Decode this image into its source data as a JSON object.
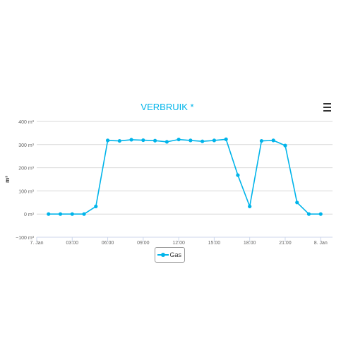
{
  "chart_data": {
    "type": "line",
    "title": "VERBRUIK *",
    "ylabel": "m³",
    "xlabel": "",
    "ylim": [
      -100,
      400
    ],
    "y_ticks": [
      {
        "value": 400,
        "label": "400 m³"
      },
      {
        "value": 300,
        "label": "300 m³"
      },
      {
        "value": 200,
        "label": "200 m³"
      },
      {
        "value": 100,
        "label": "100 m³"
      },
      {
        "value": 0,
        "label": "0 m³"
      },
      {
        "value": -100,
        "label": "−100 m³"
      }
    ],
    "xlim": [
      0,
      25
    ],
    "x_ticks": [
      {
        "value": 0,
        "label": "7. Jan"
      },
      {
        "value": 3,
        "label": "03:00"
      },
      {
        "value": 6,
        "label": "06:00"
      },
      {
        "value": 9,
        "label": "09:00"
      },
      {
        "value": 12,
        "label": "12:00"
      },
      {
        "value": 15,
        "label": "15:00"
      },
      {
        "value": 18,
        "label": "18:00"
      },
      {
        "value": 21,
        "label": "21:00"
      },
      {
        "value": 24,
        "label": "8. Jan"
      }
    ],
    "grid": true,
    "legend": "bottom-center",
    "series": [
      {
        "name": "Gas",
        "color": "#00b4ea",
        "x": [
          1,
          2,
          3,
          4,
          5,
          6,
          7,
          8,
          9,
          10,
          11,
          12,
          13,
          14,
          15,
          16,
          17,
          18,
          19,
          20,
          21,
          22,
          23,
          24
        ],
        "values": [
          0,
          0,
          0,
          0,
          33,
          318,
          316,
          321,
          319,
          317,
          312,
          322,
          318,
          314,
          318,
          323,
          168,
          33,
          316,
          318,
          296,
          50,
          0,
          0
        ]
      }
    ]
  },
  "menu": {
    "icon": "hamburger-menu-icon"
  }
}
